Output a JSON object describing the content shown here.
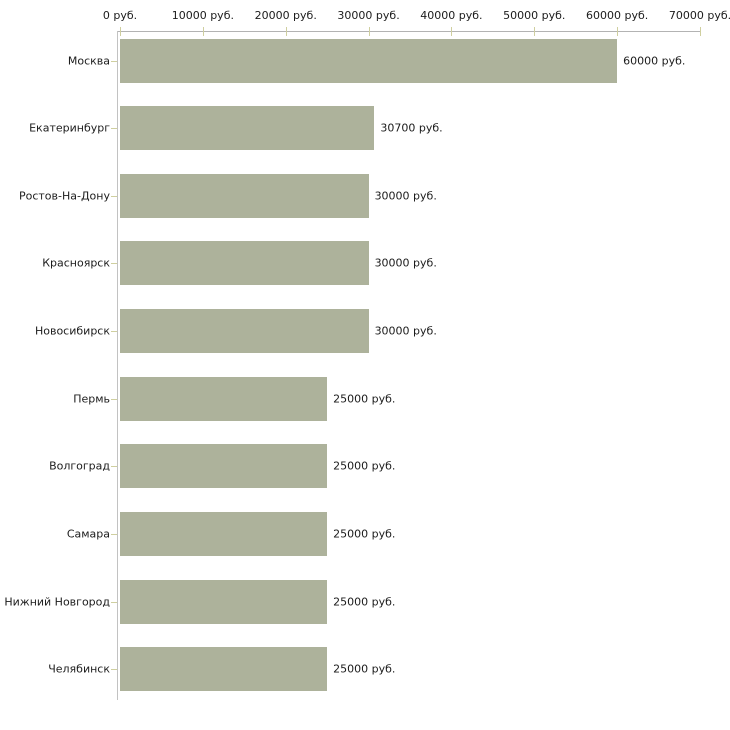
{
  "chart_data": {
    "type": "bar",
    "orientation": "horizontal",
    "title": "",
    "xlabel": "",
    "ylabel": "",
    "unit": "руб.",
    "categories": [
      "Москва",
      "Екатеринбург",
      "Ростов-На-Дону",
      "Красноярск",
      "Новосибирск",
      "Пермь",
      "Волгоград",
      "Самара",
      "Нижний Новгород",
      "Челябинск"
    ],
    "values": [
      60000,
      30700,
      30000,
      30000,
      30000,
      25000,
      25000,
      25000,
      25000,
      25000
    ],
    "value_labels": [
      "60000 руб.",
      "30700 руб.",
      "30000 руб.",
      "30000 руб.",
      "30000 руб.",
      "25000 руб.",
      "25000 руб.",
      "25000 руб.",
      "25000 руб.",
      "25000 руб."
    ],
    "x_axis": {
      "position": "top",
      "min": 0,
      "max": 70000,
      "ticks": [
        0,
        10000,
        20000,
        30000,
        40000,
        50000,
        60000,
        70000
      ],
      "tick_labels": [
        "0 руб.",
        "10000 руб.",
        "20000 руб.",
        "30000 руб.",
        "40000 руб.",
        "50000 руб.",
        "60000 руб.",
        "70000 руб."
      ]
    },
    "grid": false,
    "legend": false,
    "colors": {
      "bar": "#adb29b",
      "axis_line": "#b3b3b3",
      "tick_mark": "#cfcf9f",
      "text": "#1c1c1c",
      "background": "#ffffff"
    }
  }
}
